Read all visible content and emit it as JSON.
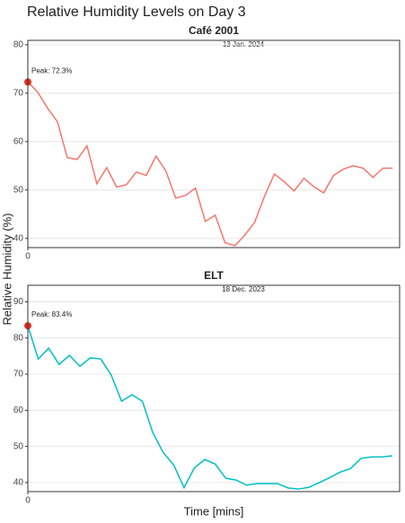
{
  "title": "Relative Humidity Levels on Day 3",
  "y_label": "Relative Humidity (%)",
  "x_label": "Time [mins]",
  "chart_data": [
    {
      "type": "line",
      "title": "Café 2001",
      "date": "13 Jan. 2024",
      "peak_label": "Peak: 72.3%",
      "color": "#f8766d",
      "peak_color": "#e0301e",
      "grid": true,
      "x": [
        0,
        1,
        2,
        3,
        4,
        5,
        6,
        7,
        8,
        9,
        10,
        11,
        12,
        13,
        14,
        15,
        16,
        17,
        18,
        19,
        20,
        21,
        22,
        23,
        24,
        25,
        26,
        27,
        28,
        29,
        30,
        31,
        32,
        33,
        34,
        35,
        36,
        37
      ],
      "values": [
        72.3,
        70.2,
        66.9,
        64.1,
        56.7,
        56.3,
        59.1,
        51.3,
        54.6,
        50.6,
        51.1,
        53.7,
        53.0,
        57.0,
        53.9,
        48.3,
        48.9,
        50.4,
        43.5,
        44.8,
        39.1,
        38.5,
        40.7,
        43.3,
        48.7,
        53.3,
        51.7,
        49.8,
        52.4,
        50.7,
        49.4,
        53.0,
        54.3,
        55.0,
        54.5,
        52.6,
        54.5,
        54.5
      ],
      "xlim": [
        0,
        37.7
      ],
      "xticks": [
        0
      ],
      "ylim": [
        38.1,
        80.9
      ],
      "yticks": [
        40,
        50,
        60,
        70,
        80
      ]
    },
    {
      "type": "line",
      "title": "ELT",
      "date": "18 Dec. 2023",
      "peak_label": "Peak: 83.4%",
      "color": "#00bfc4",
      "peak_color": "#e0301e",
      "grid": true,
      "x": [
        0,
        1,
        2,
        3,
        4,
        5,
        6,
        7,
        8,
        9,
        10,
        11,
        12,
        13,
        14,
        15,
        16,
        17,
        18,
        19,
        20,
        21,
        22,
        23,
        24,
        25,
        26,
        27,
        28,
        29,
        30,
        31,
        32,
        33,
        34,
        35
      ],
      "values": [
        83.4,
        74.2,
        77.2,
        72.7,
        75.2,
        72.2,
        74.5,
        74.2,
        69.8,
        62.5,
        64.3,
        62.5,
        53.8,
        48.3,
        44.9,
        38.6,
        44.1,
        46.4,
        45.1,
        41.2,
        40.7,
        39.3,
        39.7,
        39.7,
        39.7,
        38.5,
        38.2,
        38.7,
        40.0,
        41.4,
        42.9,
        43.9,
        46.7,
        47.1,
        47.1,
        47.4
      ],
      "xlim": [
        0,
        35.7
      ],
      "xticks": [
        0
      ],
      "ylim": [
        37.5,
        94.6
      ],
      "yticks": [
        40,
        50,
        60,
        70,
        80,
        90
      ]
    }
  ]
}
